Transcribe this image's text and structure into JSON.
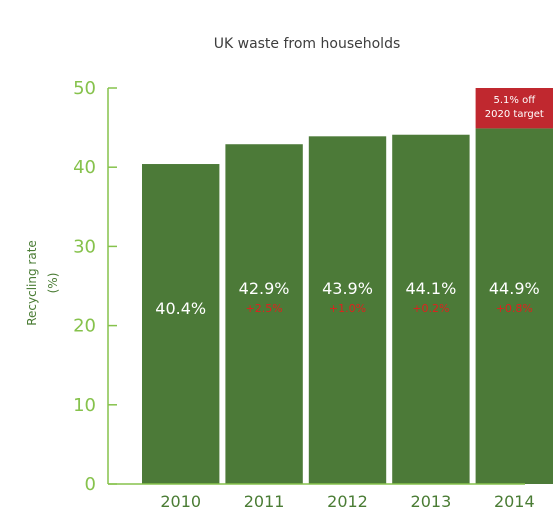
{
  "chart_data": {
    "type": "bar",
    "title": "UK waste from households",
    "ylabel_line1": "Recycling rate",
    "ylabel_line2": "(%)",
    "xlabel": "",
    "ylim": [
      0,
      50
    ],
    "yticks": [
      "0",
      "10",
      "20",
      "30",
      "40",
      "50"
    ],
    "grid": false,
    "categories": [
      "2010",
      "2011",
      "2012",
      "2013",
      "2014"
    ],
    "values": [
      40.4,
      42.9,
      43.9,
      44.1,
      44.9
    ],
    "value_labels": [
      "40.4%",
      "42.9%",
      "43.9%",
      "44.1%",
      "44.9%"
    ],
    "change_labels": [
      "",
      "+2.5%",
      "+1.0%",
      "+0.2%",
      "+0.8%"
    ],
    "annotation": {
      "category": "2014",
      "line1": "5.1% off",
      "line2": "2020 target",
      "top_value": 50
    },
    "colors": {
      "bar": "#4c7a38",
      "annotation_bg": "#c0282f",
      "axis": "#86c24c",
      "tick_text": "#86c24c",
      "category_text": "#4a7c34",
      "change_text": "#e0201e"
    }
  }
}
